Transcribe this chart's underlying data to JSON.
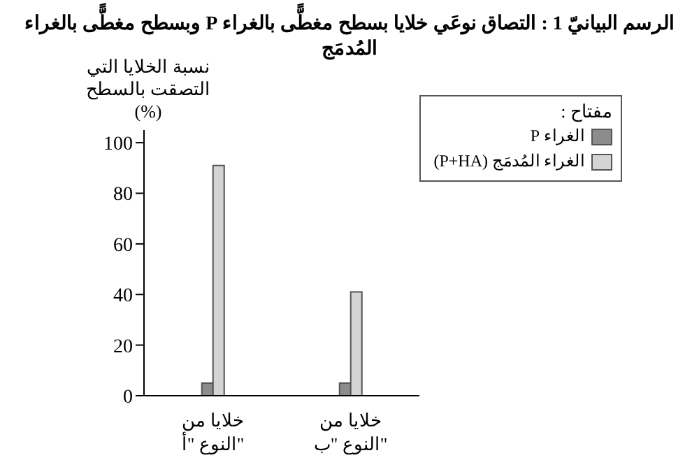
{
  "chart_data": {
    "type": "bar",
    "title": "الرسم البيانيّ 1 : التصاق نوعَي خلايا بسطح مغطًّى بالغراء P وبسطح مغطًّى بالغراء المُدمَج",
    "ylabel": "نسبة الخلايا التي التصقت بالسطح (%)",
    "legend_title": "مفتاح :",
    "categories": [
      "خلايا من\nالنوع \"أ\"",
      "خلايا من\nالنوع \"ب\""
    ],
    "series": [
      {
        "name": "الغراء P",
        "color": "#8c8c8c",
        "values": [
          5,
          5
        ]
      },
      {
        "name": "الغراء المُدمَج (P+HA)",
        "color": "#d4d4d4",
        "values": [
          91,
          41
        ]
      }
    ],
    "ylim": [
      0,
      105
    ],
    "yticks": [
      0,
      20,
      40,
      60,
      80,
      100
    ],
    "grid": false,
    "legend": "top right"
  }
}
